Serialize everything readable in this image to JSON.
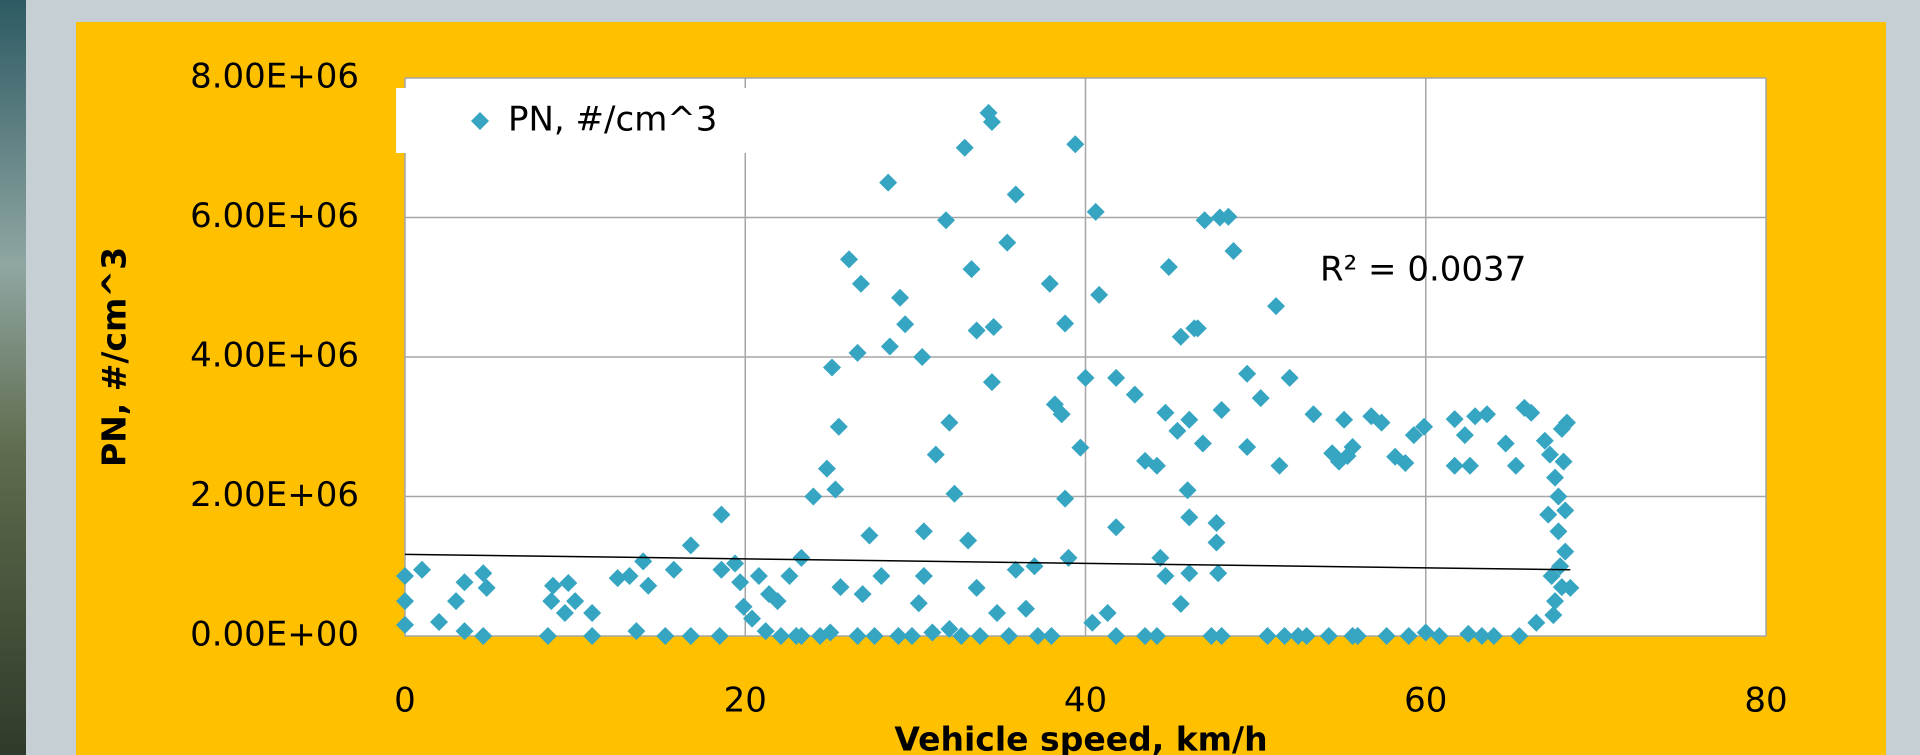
{
  "chart_data": {
    "type": "scatter",
    "xlabel": "Vehicle speed, km/h",
    "ylabel": "PN, #/cm^3",
    "annotation": "R² = 0.0037",
    "xlim": [
      0,
      80
    ],
    "xticks": [
      0,
      20,
      40,
      60,
      80
    ],
    "ylim": [
      0,
      8000000
    ],
    "yticks": [
      {
        "value": 0,
        "label": "0.00E+00"
      },
      {
        "value": 2000000,
        "label": "2.00E+06"
      },
      {
        "value": 4000000,
        "label": "4.00E+06"
      },
      {
        "value": 6000000,
        "label": "6.00E+06"
      },
      {
        "value": 8000000,
        "label": "8.00E+06"
      }
    ],
    "grid": true,
    "legend": "upper left",
    "series": [
      {
        "name": "PN, #/cm^3",
        "color": "#35a5c2",
        "x": [
          0,
          0,
          0,
          1,
          2,
          3,
          3.5,
          3.5,
          4.6,
          4.6,
          4.8,
          8.4,
          8.6,
          8.7,
          9.6,
          9.4,
          10,
          11,
          11,
          12.5,
          13.2,
          13.6,
          14,
          14.3,
          15.3,
          15.8,
          16.8,
          16.8,
          18.5,
          18.6,
          18.6,
          19.4,
          19.7,
          19.9,
          20.4,
          20.8,
          21.2,
          21.4,
          21.9,
          22.1,
          22.6,
          23.3,
          23.3,
          24,
          24.4,
          24.8,
          25.1,
          25.3,
          25.5,
          25.6,
          26.1,
          26.6,
          26.6,
          26.8,
          26.9,
          27.3,
          28,
          28.4,
          28.5,
          29.1,
          29.4,
          29.8,
          30.2,
          30.4,
          30.5,
          30.5,
          31.2,
          31.8,
          32,
          32.3,
          32.7,
          32.9,
          33.1,
          33.3,
          33.6,
          33.6,
          33.8,
          34.3,
          34.5,
          34.5,
          34.6,
          34.8,
          35.4,
          35.9,
          35.9,
          36.5,
          37,
          37.2,
          37.9,
          38.2,
          38.6,
          38.8,
          38.8,
          39,
          39.4,
          39.7,
          40,
          40.4,
          40.6,
          40.8,
          41.3,
          41.8,
          41.8,
          42.9,
          43.5,
          44.2,
          44.2,
          44.4,
          44.7,
          44.7,
          44.9,
          45.4,
          45.6,
          45.6,
          46,
          46.1,
          46.4,
          46.6,
          46.1,
          46.1,
          46.9,
          47,
          47.4,
          47.7,
          47.7,
          47.8,
          47.9,
          48,
          48.4,
          48.7,
          49.5,
          49.5,
          50.3,
          50.7,
          51.2,
          51.4,
          52,
          52.5,
          53.4,
          54.3,
          54.5,
          54.9,
          55.2,
          55.4,
          55.7,
          55.7,
          56.8,
          57.4,
          57.7,
          58.2,
          58.8,
          59.3,
          59.9,
          60.8,
          61.7,
          61.7,
          62.3,
          62.6,
          62.9,
          63.6,
          64,
          64.7,
          65.3,
          65.8,
          66.2,
          65.5,
          66.5,
          67,
          67.2,
          67.4,
          67.6,
          67.6,
          68,
          68.2,
          68.3,
          68.5,
          23,
          25,
          27.6,
          29,
          31,
          32,
          35.5,
          38,
          41.8,
          43.5,
          48,
          51.7,
          53,
          56,
          59,
          60,
          62.5,
          63.3,
          67.8,
          67.8,
          67.9,
          68.1,
          67.5,
          68,
          67.3,
          68.2
        ],
        "values": [
          860000,
          500000,
          160000,
          950000,
          200000,
          500000,
          770000,
          70000,
          900000,
          0,
          690000,
          0,
          500000,
          720000,
          760000,
          330000,
          500000,
          0,
          330000,
          830000,
          860000,
          70000,
          1070000,
          720000,
          0,
          950000,
          1300000,
          0,
          0,
          1740000,
          950000,
          1040000,
          770000,
          420000,
          250000,
          860000,
          70000,
          600000,
          500000,
          0,
          860000,
          0,
          1120000,
          2000000,
          0,
          2400000,
          3850000,
          2100000,
          3000000,
          700000,
          5400000,
          0,
          4060000,
          5050000,
          600000,
          1440000,
          860000,
          6500000,
          4150000,
          4850000,
          4470000,
          0,
          470000,
          4000000,
          1500000,
          860000,
          2600000,
          5960000,
          3060000,
          2040000,
          0,
          7000000,
          1370000,
          5260000,
          4380000,
          690000,
          0,
          7500000,
          7370000,
          3640000,
          4430000,
          330000,
          5640000,
          6330000,
          950000,
          390000,
          1000000,
          0,
          5050000,
          3320000,
          3180000,
          4480000,
          1970000,
          1120000,
          7050000,
          2700000,
          3700000,
          190000,
          6080000,
          4890000,
          330000,
          3700000,
          1560000,
          3460000,
          2510000,
          0,
          2440000,
          1120000,
          3200000,
          860000,
          5290000,
          2940000,
          460000,
          4290000,
          2090000,
          3100000,
          4410000,
          4410000,
          1700000,
          900000,
          2760000,
          5960000,
          0,
          1620000,
          1340000,
          900000,
          6000000,
          3240000,
          6010000,
          5520000,
          3760000,
          2710000,
          3410000,
          0,
          4730000,
          2440000,
          3700000,
          0,
          3180000,
          0,
          2620000,
          2500000,
          3100000,
          2580000,
          2710000,
          0,
          3150000,
          3060000,
          0,
          2570000,
          2480000,
          2880000,
          3000000,
          0,
          3110000,
          2440000,
          2880000,
          2440000,
          3150000,
          3180000,
          0,
          2760000,
          2440000,
          3270000,
          3200000,
          0,
          190000,
          2800000,
          1740000,
          860000,
          2270000,
          500000,
          2970000,
          1210000,
          3060000,
          690000,
          0,
          50000,
          0,
          0,
          50000,
          100000,
          0,
          0,
          0,
          0,
          0,
          0,
          0,
          0,
          0,
          50000,
          30000,
          0,
          1500000,
          2000000,
          1000000,
          2500000,
          300000,
          700000,
          2600000,
          1800000
        ]
      }
    ],
    "trendline": {
      "color": "#000000",
      "x": [
        0,
        68.5
      ],
      "values": [
        1170000,
        950000
      ]
    }
  }
}
